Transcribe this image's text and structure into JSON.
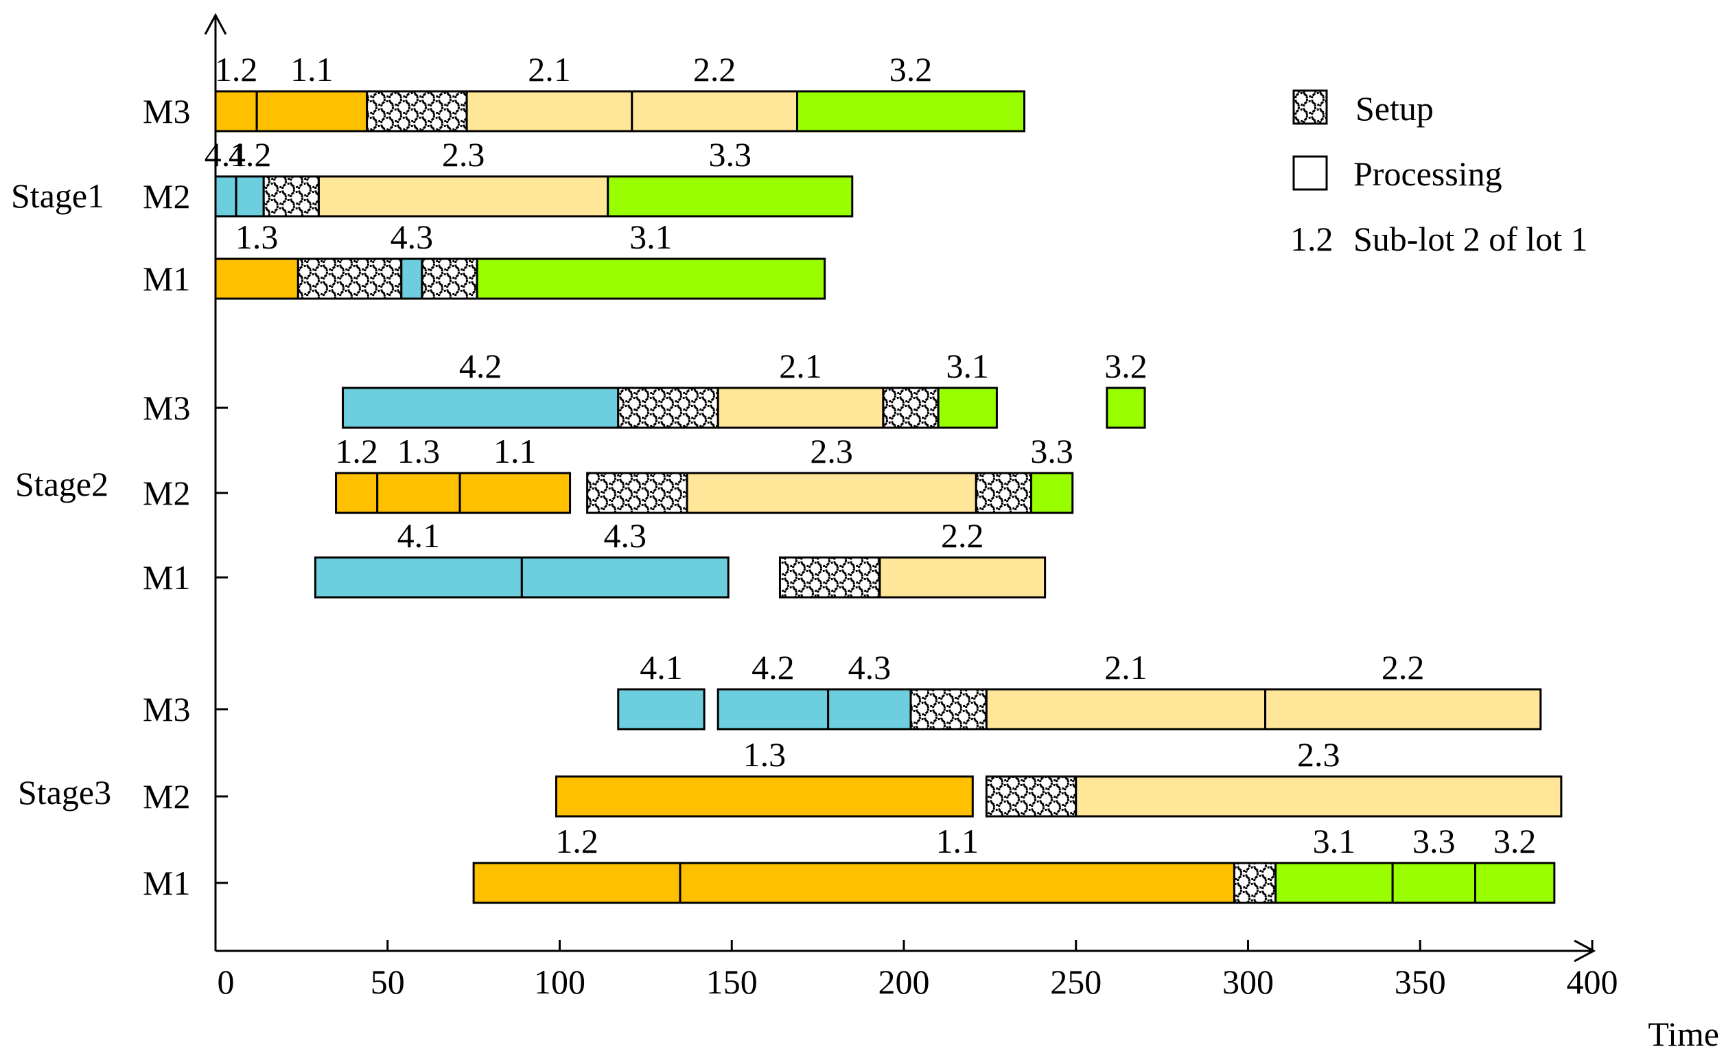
{
  "chart_data": {
    "type": "gantt",
    "xlabel": "Time",
    "xlim": [
      0,
      400
    ],
    "xticks": [
      0,
      50,
      100,
      150,
      200,
      250,
      300,
      350,
      400
    ],
    "colors": {
      "lot1": "#FFC000",
      "lot2": "#FFE699",
      "lot3": "#99FF00",
      "lot4": "#6DCEDE"
    },
    "legend": {
      "position": "top-right",
      "setup": "Setup",
      "processing": "Processing",
      "sublot_key": "1.2",
      "sublot_text": "Sub-lot 2 of lot 1"
    },
    "stages": [
      {
        "name": "Stage1",
        "machines": [
          {
            "name": "M3",
            "tasks": [
              {
                "kind": "proc",
                "lot": 1,
                "start": 0,
                "end": 12,
                "label": "1.2"
              },
              {
                "kind": "proc",
                "lot": 1,
                "start": 12,
                "end": 44,
                "label": "1.1"
              },
              {
                "kind": "setup",
                "start": 44,
                "end": 73
              },
              {
                "kind": "proc",
                "lot": 2,
                "start": 73,
                "end": 121,
                "label": "2.1"
              },
              {
                "kind": "proc",
                "lot": 2,
                "start": 121,
                "end": 169,
                "label": "2.2"
              },
              {
                "kind": "proc",
                "lot": 3,
                "start": 169,
                "end": 235,
                "label": "3.2"
              }
            ]
          },
          {
            "name": "M2",
            "tasks": [
              {
                "kind": "proc",
                "lot": 4,
                "start": 0,
                "end": 6,
                "label": "4.1"
              },
              {
                "kind": "proc",
                "lot": 4,
                "start": 6,
                "end": 14,
                "label": "4.2"
              },
              {
                "kind": "setup",
                "start": 14,
                "end": 30
              },
              {
                "kind": "proc",
                "lot": 2,
                "start": 30,
                "end": 114,
                "label": "2.3"
              },
              {
                "kind": "proc",
                "lot": 3,
                "start": 114,
                "end": 185,
                "label": "3.3"
              }
            ]
          },
          {
            "name": "M1",
            "tasks": [
              {
                "kind": "proc",
                "lot": 1,
                "start": 0,
                "end": 24,
                "label": "1.3"
              },
              {
                "kind": "setup",
                "start": 24,
                "end": 54
              },
              {
                "kind": "proc",
                "lot": 4,
                "start": 54,
                "end": 60,
                "label": "4.3"
              },
              {
                "kind": "setup",
                "start": 60,
                "end": 76
              },
              {
                "kind": "proc",
                "lot": 3,
                "start": 76,
                "end": 177,
                "label": "3.1"
              }
            ]
          }
        ]
      },
      {
        "name": "Stage2",
        "machines": [
          {
            "name": "M3",
            "tasks": [
              {
                "kind": "proc",
                "lot": 4,
                "start": 37,
                "end": 117,
                "label": "4.2"
              },
              {
                "kind": "setup",
                "start": 117,
                "end": 146
              },
              {
                "kind": "proc",
                "lot": 2,
                "start": 146,
                "end": 194,
                "label": "2.1"
              },
              {
                "kind": "setup",
                "start": 194,
                "end": 210
              },
              {
                "kind": "proc",
                "lot": 3,
                "start": 210,
                "end": 227,
                "label": "3.1"
              },
              {
                "kind": "proc",
                "lot": 3,
                "start": 259,
                "end": 270,
                "label": "3.2"
              }
            ]
          },
          {
            "name": "M2",
            "tasks": [
              {
                "kind": "proc",
                "lot": 1,
                "start": 35,
                "end": 47,
                "label": "1.2"
              },
              {
                "kind": "proc",
                "lot": 1,
                "start": 47,
                "end": 71,
                "label": "1.3"
              },
              {
                "kind": "proc",
                "lot": 1,
                "start": 71,
                "end": 103,
                "label": "1.1"
              },
              {
                "kind": "setup",
                "start": 108,
                "end": 137
              },
              {
                "kind": "proc",
                "lot": 2,
                "start": 137,
                "end": 221,
                "label": "2.3"
              },
              {
                "kind": "setup",
                "start": 221,
                "end": 237
              },
              {
                "kind": "proc",
                "lot": 3,
                "start": 237,
                "end": 249,
                "label": "3.3"
              }
            ]
          },
          {
            "name": "M1",
            "tasks": [
              {
                "kind": "proc",
                "lot": 4,
                "start": 29,
                "end": 89,
                "label": "4.1"
              },
              {
                "kind": "proc",
                "lot": 4,
                "start": 89,
                "end": 149,
                "label": "4.3"
              },
              {
                "kind": "setup",
                "start": 164,
                "end": 193
              },
              {
                "kind": "proc",
                "lot": 2,
                "start": 193,
                "end": 241,
                "label": "2.2"
              }
            ]
          }
        ]
      },
      {
        "name": "Stage3",
        "machines": [
          {
            "name": "M3",
            "tasks": [
              {
                "kind": "proc",
                "lot": 4,
                "start": 117,
                "end": 142,
                "label": "4.1"
              },
              {
                "kind": "proc",
                "lot": 4,
                "start": 146,
                "end": 178,
                "label": "4.2"
              },
              {
                "kind": "proc",
                "lot": 4,
                "start": 178,
                "end": 202,
                "label": "4.3"
              },
              {
                "kind": "setup",
                "start": 202,
                "end": 224
              },
              {
                "kind": "proc",
                "lot": 2,
                "start": 224,
                "end": 305,
                "label": "2.1"
              },
              {
                "kind": "proc",
                "lot": 2,
                "start": 305,
                "end": 385,
                "label": "2.2"
              }
            ]
          },
          {
            "name": "M2",
            "tasks": [
              {
                "kind": "proc",
                "lot": 1,
                "start": 99,
                "end": 220,
                "label": "1.3"
              },
              {
                "kind": "setup",
                "start": 224,
                "end": 250
              },
              {
                "kind": "proc",
                "lot": 2,
                "start": 250,
                "end": 391,
                "label": "2.3"
              }
            ]
          },
          {
            "name": "M1",
            "tasks": [
              {
                "kind": "proc",
                "lot": 1,
                "start": 75,
                "end": 135,
                "label": "1.2"
              },
              {
                "kind": "proc",
                "lot": 1,
                "start": 135,
                "end": 296,
                "label": "1.1"
              },
              {
                "kind": "setup",
                "start": 296,
                "end": 308
              },
              {
                "kind": "proc",
                "lot": 3,
                "start": 308,
                "end": 342,
                "label": "3.1"
              },
              {
                "kind": "proc",
                "lot": 3,
                "start": 342,
                "end": 366,
                "label": "3.3"
              },
              {
                "kind": "proc",
                "lot": 3,
                "start": 366,
                "end": 389,
                "label": "3.2"
              }
            ]
          }
        ]
      }
    ]
  }
}
